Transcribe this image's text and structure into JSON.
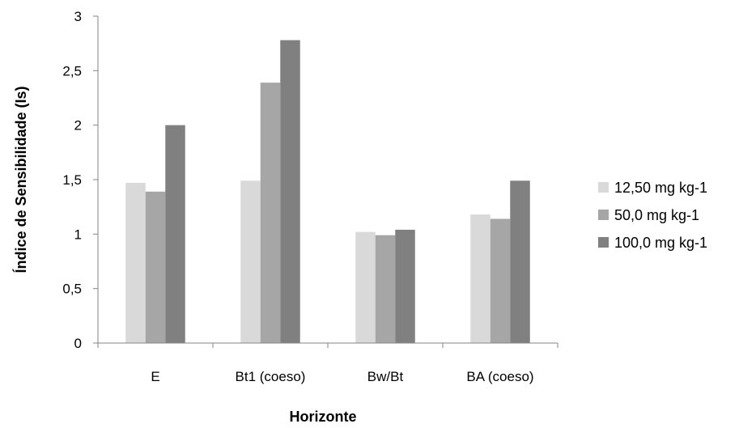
{
  "chart_data": {
    "type": "bar",
    "title": "",
    "xlabel": "Horizonte",
    "ylabel": "Índice de Sensibilidade (Is)",
    "ylim": [
      0,
      3
    ],
    "yticks": [
      "0",
      "0,5",
      "1",
      "1,5",
      "2",
      "2,5",
      "3"
    ],
    "grid": false,
    "legend_position": "right",
    "categories": [
      "E",
      "Bt1 (coeso)",
      "Bw/Bt",
      "BA (coeso)"
    ],
    "series": [
      {
        "name": "12,50 mg kg-1",
        "color": "#d9d9d9",
        "values": [
          1.47,
          1.49,
          1.02,
          1.18
        ]
      },
      {
        "name": "50,0 mg kg-1",
        "color": "#a6a6a6",
        "values": [
          1.39,
          2.39,
          0.99,
          1.14
        ]
      },
      {
        "name": "100,0 mg kg-1",
        "color": "#808080",
        "values": [
          2.0,
          2.78,
          1.04,
          1.49
        ]
      }
    ]
  }
}
